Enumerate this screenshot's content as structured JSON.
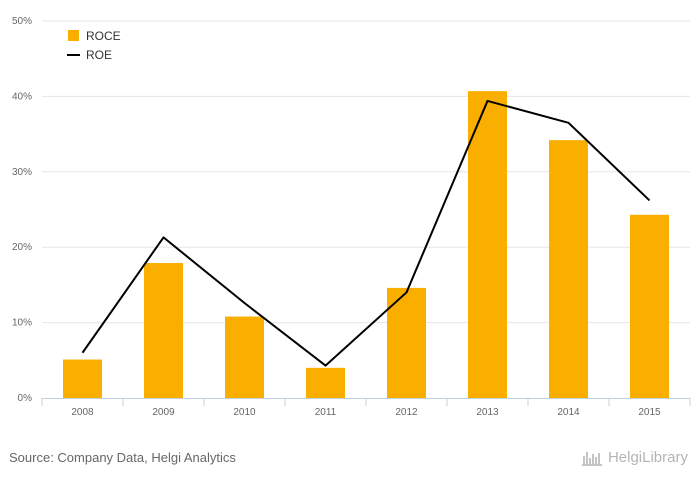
{
  "chart_data": {
    "type": "bar",
    "categories": [
      "2008",
      "2009",
      "2010",
      "2011",
      "2012",
      "2013",
      "2014",
      "2015"
    ],
    "series": [
      {
        "name": "ROCE",
        "type": "bar",
        "color": "#f9ae00",
        "values": [
          5.1,
          17.9,
          10.8,
          4.0,
          14.6,
          40.7,
          34.2,
          24.3
        ]
      },
      {
        "name": "ROE",
        "type": "line",
        "color": "#000000",
        "values": [
          6.0,
          21.3,
          12.6,
          4.3,
          14.0,
          39.4,
          36.5,
          26.2
        ]
      }
    ],
    "yticks": [
      "0%",
      "10%",
      "20%",
      "30%",
      "40%",
      "50%"
    ],
    "ylim": [
      0,
      50
    ],
    "grid": true,
    "legend_position": "top-left"
  },
  "footer": {
    "source": "Source: Company Data, Helgi Analytics",
    "logo_text": "HelgiLibrary"
  }
}
